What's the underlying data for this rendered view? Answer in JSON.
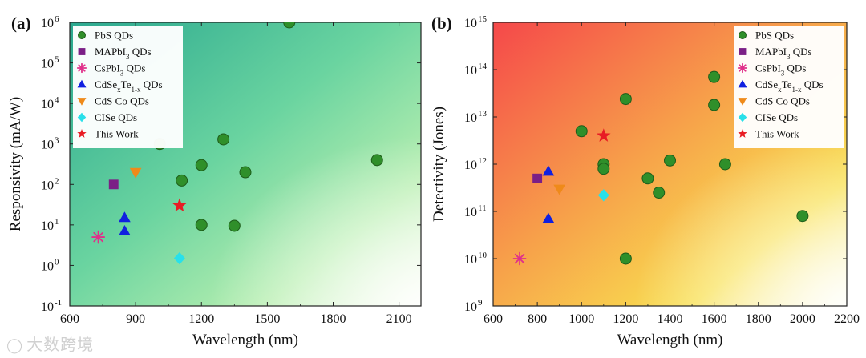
{
  "watermark": {
    "text": "大数跨境",
    "icon": "speech-bubble-icon"
  },
  "chart_data": [
    {
      "panel_label": "(a)",
      "type": "scatter",
      "xlabel": "Wavelength (nm)",
      "ylabel": "Responsivity (mA/W)",
      "xlim": [
        600,
        2200
      ],
      "ylim_log10": [
        -1,
        6
      ],
      "y_scale": "log",
      "xticks": [
        600,
        900,
        1200,
        1500,
        1800,
        2100
      ],
      "yticks": [
        {
          "exp": -1,
          "base": "10",
          "sup": "-1"
        },
        {
          "exp": 0,
          "base": "10",
          "sup": "0"
        },
        {
          "exp": 1,
          "base": "10",
          "sup": "1"
        },
        {
          "exp": 2,
          "base": "10",
          "sup": "2"
        },
        {
          "exp": 3,
          "base": "10",
          "sup": "3"
        },
        {
          "exp": 4,
          "base": "10",
          "sup": "4"
        },
        {
          "exp": 5,
          "base": "10",
          "sup": "5"
        },
        {
          "exp": 6,
          "base": "10",
          "sup": "6"
        }
      ],
      "background": {
        "colors": [
          "#2aa88f",
          "#6ad4a0",
          "#b8efb0",
          "#f4fbe6"
        ]
      },
      "legend_position": "top-left",
      "series": [
        {
          "name": "PbS QDs",
          "label_parts": [
            {
              "t": "PbS QDs"
            }
          ],
          "marker": "circle",
          "color": "#2f8f2a",
          "points": [
            [
              1010,
              1000
            ],
            [
              1110,
              125
            ],
            [
              1200,
              300
            ],
            [
              1200,
              10
            ],
            [
              1300,
              1300
            ],
            [
              1350,
              9.5
            ],
            [
              1400,
              200
            ],
            [
              1600,
              1000000
            ],
            [
              2000,
              400
            ]
          ]
        },
        {
          "name": "MAPbI3 QDs",
          "label_parts": [
            {
              "t": "MAPbI"
            },
            {
              "t": "3",
              "sub": true
            },
            {
              "t": " QDs"
            }
          ],
          "marker": "square",
          "color": "#7b1f86",
          "points": [
            [
              800,
              100
            ]
          ]
        },
        {
          "name": "CsPbI3 QDs",
          "label_parts": [
            {
              "t": "CsPbI"
            },
            {
              "t": "3",
              "sub": true
            },
            {
              "t": " QDs"
            }
          ],
          "marker": "asterisk",
          "color": "#e0308a",
          "points": [
            [
              730,
              5
            ]
          ]
        },
        {
          "name": "CdSexTe1-x QDs",
          "label_parts": [
            {
              "t": "CdSe"
            },
            {
              "t": "x",
              "sub": true
            },
            {
              "t": "Te"
            },
            {
              "t": "1-x",
              "sub": true
            },
            {
              "t": " QDs"
            }
          ],
          "marker": "triangle-up",
          "color": "#1020e0",
          "points": [
            [
              850,
              15
            ],
            [
              850,
              7
            ]
          ]
        },
        {
          "name": "CdS Co QDs",
          "label_parts": [
            {
              "t": "CdS Co QDs"
            }
          ],
          "marker": "triangle-down",
          "color": "#ef8a1a",
          "points": [
            [
              900,
              200
            ]
          ]
        },
        {
          "name": "CISe QDs",
          "label_parts": [
            {
              "t": "CISe QDs"
            }
          ],
          "marker": "diamond",
          "color": "#29e0ea",
          "points": [
            [
              1100,
              1.5
            ]
          ]
        },
        {
          "name": "This Work",
          "label_parts": [
            {
              "t": "This Work"
            }
          ],
          "marker": "star",
          "color": "#e81c24",
          "points": [
            [
              1100,
              30
            ]
          ]
        }
      ]
    },
    {
      "panel_label": "(b)",
      "type": "scatter",
      "xlabel": "Wavelength (nm)",
      "ylabel": "Detectivity (Jones)",
      "xlim": [
        600,
        2200
      ],
      "ylim_log10": [
        9,
        15
      ],
      "y_scale": "log",
      "xticks": [
        600,
        800,
        1000,
        1200,
        1400,
        1600,
        1800,
        2000,
        2200
      ],
      "yticks": [
        {
          "exp": 9,
          "base": "10",
          "sup": "9"
        },
        {
          "exp": 10,
          "base": "10",
          "sup": "10"
        },
        {
          "exp": 11,
          "base": "10",
          "sup": "11"
        },
        {
          "exp": 12,
          "base": "10",
          "sup": "12"
        },
        {
          "exp": 13,
          "base": "10",
          "sup": "13"
        },
        {
          "exp": 14,
          "base": "10",
          "sup": "14"
        },
        {
          "exp": 15,
          "base": "10",
          "sup": "15"
        }
      ],
      "background": {
        "colors": [
          "#f5484a",
          "#f7a24a",
          "#f8e050",
          "#fbfbd8"
        ]
      },
      "legend_position": "top-right",
      "series": [
        {
          "name": "PbS QDs",
          "label_parts": [
            {
              "t": "PbS QDs"
            }
          ],
          "marker": "circle",
          "color": "#2f8f2a",
          "points": [
            [
              1000,
              5000000000000.0
            ],
            [
              1100,
              1000000000000.0
            ],
            [
              1100,
              800000000000.0
            ],
            [
              1200,
              24000000000000.0
            ],
            [
              1200,
              10000000000.0
            ],
            [
              1300,
              500000000000.0
            ],
            [
              1350,
              250000000000.0
            ],
            [
              1400,
              1200000000000.0
            ],
            [
              1600,
              70000000000000.0
            ],
            [
              1600,
              18000000000000.0
            ],
            [
              1650,
              1000000000000.0
            ],
            [
              2000,
              80000000000.0
            ]
          ]
        },
        {
          "name": "MAPbI3 QDs",
          "label_parts": [
            {
              "t": "MAPbI"
            },
            {
              "t": "3",
              "sub": true
            },
            {
              "t": " QDs"
            }
          ],
          "marker": "square",
          "color": "#7b1f86",
          "points": [
            [
              800,
              500000000000.0
            ]
          ]
        },
        {
          "name": "CsPbI3 QDs",
          "label_parts": [
            {
              "t": "CsPbI"
            },
            {
              "t": "3",
              "sub": true
            },
            {
              "t": " QDs"
            }
          ],
          "marker": "asterisk",
          "color": "#e0308a",
          "points": [
            [
              720,
              10000000000.0
            ]
          ]
        },
        {
          "name": "CdSexTe1-x QDs",
          "label_parts": [
            {
              "t": "CdSe"
            },
            {
              "t": "x",
              "sub": true
            },
            {
              "t": "Te"
            },
            {
              "t": "1-x",
              "sub": true
            },
            {
              "t": " QDs"
            }
          ],
          "marker": "triangle-up",
          "color": "#1020e0",
          "points": [
            [
              850,
              700000000000.0
            ],
            [
              850,
              70000000000.0
            ]
          ]
        },
        {
          "name": "CdS Co QDs",
          "label_parts": [
            {
              "t": "CdS Co QDs"
            }
          ],
          "marker": "triangle-down",
          "color": "#ef8a1a",
          "points": [
            [
              900,
              300000000000.0
            ]
          ]
        },
        {
          "name": "CISe QDs",
          "label_parts": [
            {
              "t": "CISe QDs"
            }
          ],
          "marker": "diamond",
          "color": "#29e0ea",
          "points": [
            [
              1100,
              220000000000.0
            ]
          ]
        },
        {
          "name": "This Work",
          "label_parts": [
            {
              "t": "This Work"
            }
          ],
          "marker": "star",
          "color": "#e81c24",
          "points": [
            [
              1100,
              4000000000000.0
            ]
          ]
        }
      ]
    }
  ]
}
